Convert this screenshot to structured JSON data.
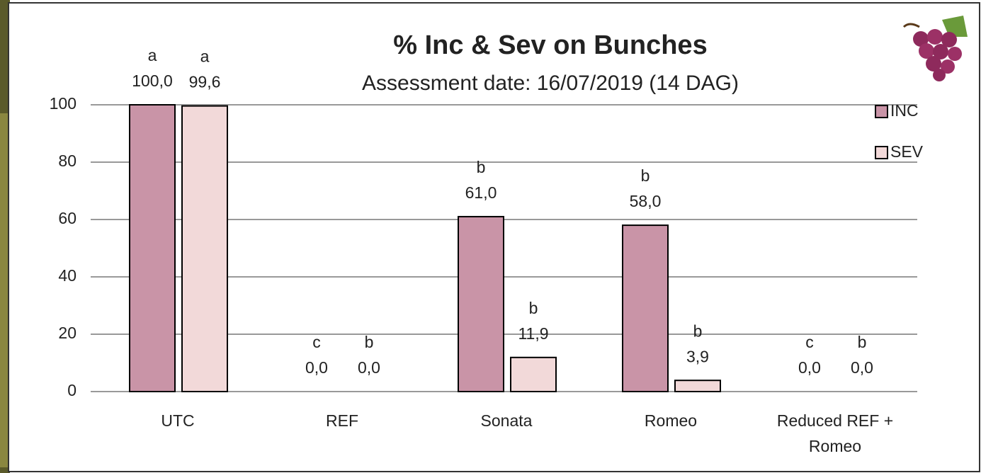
{
  "chart_data": {
    "type": "bar",
    "title": "% Inc & Sev on Bunches",
    "subtitle": "Assessment date: 16/07/2019 (14 DAG)",
    "categories": [
      "UTC",
      "REF",
      "Sonata",
      "Romeo",
      "Reduced REF + Romeo"
    ],
    "series": [
      {
        "name": "INC",
        "color": "#c994a7",
        "values": [
          100,
          0,
          61,
          58,
          0
        ],
        "value_labels": [
          "100,0",
          "0,0",
          "61,0",
          "58,0",
          "0,0"
        ],
        "significance": [
          "a",
          "c",
          "b",
          "b",
          "c"
        ]
      },
      {
        "name": "SEV",
        "color": "#f2d9d9",
        "values": [
          99.6,
          0,
          11.9,
          3.9,
          0
        ],
        "value_labels": [
          "99,6",
          "0,0",
          "11,9",
          "3,9",
          "0,0"
        ],
        "significance": [
          "a",
          "b",
          "b",
          "b",
          "b"
        ]
      }
    ],
    "ylim": [
      0,
      100
    ],
    "yticks": [
      0,
      20,
      40,
      60,
      80,
      100
    ],
    "grid": true,
    "legend": "right"
  }
}
